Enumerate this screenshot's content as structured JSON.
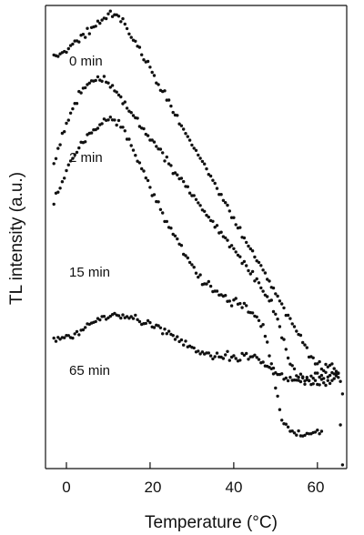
{
  "chart_data": {
    "type": "scatter",
    "xlabel": "Temperature (°C)",
    "ylabel": "TL intensity (a.u.)",
    "xlim": [
      -5,
      67
    ],
    "ylim": [
      -0.6,
      5.6
    ],
    "xticks": [
      0,
      20,
      40,
      60
    ],
    "grid": false,
    "legend": "none",
    "point_color": "#111111",
    "series": [
      {
        "name": "0 min",
        "points": [
          [
            -3,
            4.9
          ],
          [
            -1,
            4.95
          ],
          [
            1,
            5.05
          ],
          [
            3,
            5.15
          ],
          [
            5,
            5.25
          ],
          [
            7,
            5.35
          ],
          [
            9,
            5.45
          ],
          [
            10.5,
            5.5
          ],
          [
            12,
            5.47
          ],
          [
            14,
            5.35
          ],
          [
            16,
            5.15
          ],
          [
            18,
            4.95
          ],
          [
            20,
            4.75
          ],
          [
            22,
            4.55
          ],
          [
            24,
            4.35
          ],
          [
            26,
            4.15
          ],
          [
            28,
            3.95
          ],
          [
            30,
            3.75
          ],
          [
            32,
            3.55
          ],
          [
            34,
            3.35
          ],
          [
            36,
            3.15
          ],
          [
            38,
            2.95
          ],
          [
            40,
            2.75
          ],
          [
            42,
            2.55
          ],
          [
            44,
            2.35
          ],
          [
            46,
            2.15
          ],
          [
            48,
            1.95
          ],
          [
            50,
            1.75
          ],
          [
            52,
            1.55
          ],
          [
            54,
            1.35
          ],
          [
            56,
            1.15
          ],
          [
            58,
            0.95
          ],
          [
            60,
            0.8
          ],
          [
            62,
            0.75
          ],
          [
            63.5,
            0.75
          ],
          [
            65,
            0.7
          ],
          [
            66,
            0.4
          ]
        ]
      },
      {
        "name": "2 min",
        "points": [
          [
            -3,
            3.45
          ],
          [
            -1,
            3.85
          ],
          [
            1,
            4.15
          ],
          [
            3,
            4.4
          ],
          [
            5,
            4.55
          ],
          [
            7,
            4.62
          ],
          [
            9,
            4.6
          ],
          [
            11,
            4.5
          ],
          [
            13,
            4.35
          ],
          [
            15,
            4.2
          ],
          [
            17,
            4.05
          ],
          [
            19,
            3.9
          ],
          [
            21,
            3.75
          ],
          [
            23,
            3.6
          ],
          [
            25,
            3.45
          ],
          [
            27,
            3.3
          ],
          [
            29,
            3.15
          ],
          [
            31,
            3.0
          ],
          [
            33,
            2.85
          ],
          [
            35,
            2.7
          ],
          [
            37,
            2.55
          ],
          [
            39,
            2.4
          ],
          [
            41,
            2.25
          ],
          [
            43,
            2.1
          ],
          [
            45,
            1.95
          ],
          [
            47,
            1.8
          ],
          [
            49,
            1.6
          ],
          [
            51,
            1.3
          ],
          [
            53,
            0.9
          ],
          [
            55,
            0.65
          ],
          [
            57,
            0.6
          ],
          [
            59,
            0.62
          ],
          [
            61,
            0.65
          ],
          [
            63,
            0.65
          ],
          [
            65,
            0.68
          ]
        ]
      },
      {
        "name": "15 min",
        "points": [
          [
            -3,
            2.95
          ],
          [
            -1,
            3.25
          ],
          [
            1,
            3.5
          ],
          [
            3,
            3.7
          ],
          [
            5,
            3.85
          ],
          [
            7,
            3.97
          ],
          [
            9,
            4.05
          ],
          [
            11,
            4.08
          ],
          [
            13,
            4.0
          ],
          [
            15,
            3.8
          ],
          [
            17,
            3.55
          ],
          [
            19,
            3.3
          ],
          [
            21,
            3.05
          ],
          [
            23,
            2.8
          ],
          [
            25,
            2.6
          ],
          [
            27,
            2.4
          ],
          [
            29,
            2.2
          ],
          [
            31,
            2.05
          ],
          [
            33,
            1.9
          ],
          [
            35,
            1.8
          ],
          [
            37,
            1.72
          ],
          [
            39,
            1.65
          ],
          [
            41,
            1.6
          ],
          [
            43,
            1.55
          ],
          [
            45,
            1.45
          ],
          [
            47,
            1.3
          ],
          [
            48,
            1.1
          ],
          [
            49,
            0.8
          ],
          [
            50,
            0.5
          ],
          [
            51,
            0.2
          ],
          [
            52,
            0.0
          ],
          [
            54,
            -0.12
          ],
          [
            56,
            -0.15
          ],
          [
            58,
            -0.15
          ],
          [
            60,
            -0.12
          ],
          [
            61,
            -0.1
          ]
        ]
      },
      {
        "name": "65 min",
        "points": [
          [
            -3,
            1.15
          ],
          [
            -1,
            1.15
          ],
          [
            1,
            1.17
          ],
          [
            3,
            1.22
          ],
          [
            5,
            1.3
          ],
          [
            7,
            1.38
          ],
          [
            9,
            1.43
          ],
          [
            11,
            1.45
          ],
          [
            13,
            1.45
          ],
          [
            15,
            1.43
          ],
          [
            17,
            1.4
          ],
          [
            19,
            1.36
          ],
          [
            21,
            1.32
          ],
          [
            23,
            1.26
          ],
          [
            25,
            1.2
          ],
          [
            27,
            1.12
          ],
          [
            29,
            1.05
          ],
          [
            31,
            0.98
          ],
          [
            33,
            0.93
          ],
          [
            35,
            0.9
          ],
          [
            37,
            0.9
          ],
          [
            39,
            0.9
          ],
          [
            41,
            0.9
          ],
          [
            43,
            0.9
          ],
          [
            45,
            0.88
          ],
          [
            47,
            0.82
          ],
          [
            49,
            0.75
          ],
          [
            51,
            0.65
          ],
          [
            53,
            0.58
          ],
          [
            55,
            0.57
          ],
          [
            57,
            0.57
          ],
          [
            59,
            0.55
          ],
          [
            61,
            0.55
          ],
          [
            63,
            0.57
          ],
          [
            65,
            0.6
          ],
          [
            66,
            -0.55
          ]
        ]
      }
    ]
  }
}
